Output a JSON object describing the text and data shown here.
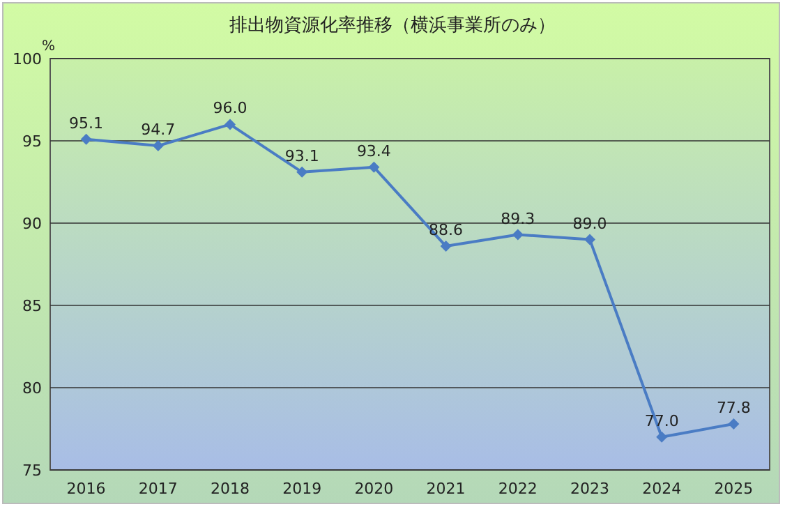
{
  "chart_data": {
    "type": "line",
    "title": "排出物資源化率推移（横浜事業所のみ）",
    "ylabel": "%",
    "categories": [
      "2016",
      "2017",
      "2018",
      "2019",
      "2020",
      "2021",
      "2022",
      "2023",
      "2024",
      "2025"
    ],
    "series": [
      {
        "color": "#4a7cc4",
        "values": [
          95.1,
          94.7,
          96.0,
          93.1,
          93.4,
          88.6,
          89.3,
          89.0,
          77.0,
          77.8
        ],
        "value_labels": [
          "95.1",
          "94.7",
          "96.0",
          "93.1",
          "93.4",
          "88.6",
          "89.3",
          "89.0",
          "77.0",
          "77.8"
        ]
      }
    ],
    "ylim": [
      75,
      100
    ],
    "yticks": [
      75,
      80,
      85,
      90,
      95,
      100
    ],
    "grid": "y",
    "marker": "diamond"
  }
}
